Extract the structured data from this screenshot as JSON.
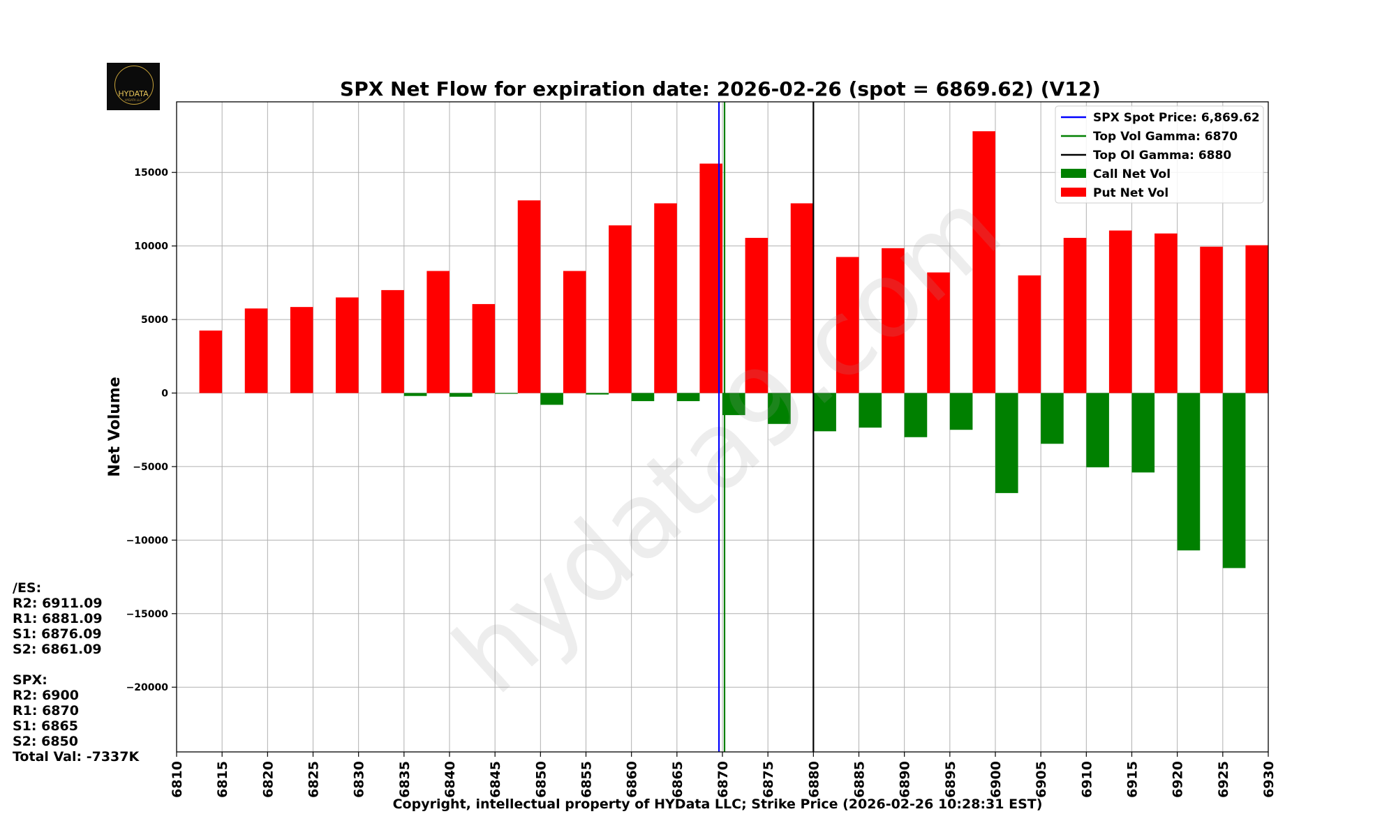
{
  "chart_data": {
    "type": "bar",
    "title": "SPX Net Flow for expiration date: 2026-02-26 (spot = 6869.62) (V12)",
    "xlabel": "Copyright, intellectual property of HYData LLC; Strike Price (2026-02-26 10:28:31 EST)",
    "ylabel": "Net Volume",
    "xlim": [
      6810,
      6930
    ],
    "ylim": [
      -24400,
      19800
    ],
    "x_ticks": [
      6810,
      6815,
      6820,
      6825,
      6830,
      6835,
      6840,
      6845,
      6850,
      6855,
      6860,
      6865,
      6870,
      6875,
      6880,
      6885,
      6890,
      6895,
      6900,
      6905,
      6910,
      6915,
      6920,
      6925,
      6930
    ],
    "y_ticks": [
      -20000,
      -15000,
      -10000,
      -5000,
      0,
      5000,
      10000,
      15000
    ],
    "y_tick_labels": [
      "−20000",
      "−15000",
      "−10000",
      "−5000",
      "0",
      "5000",
      "10000",
      "15000"
    ],
    "strikes": [
      6815,
      6820,
      6825,
      6830,
      6835,
      6840,
      6845,
      6850,
      6855,
      6860,
      6865,
      6870,
      6875,
      6880,
      6885,
      6890,
      6895,
      6900,
      6905,
      6910,
      6915,
      6920,
      6925,
      6930
    ],
    "series": [
      {
        "name": "Call Net Vol",
        "color": "#008000",
        "values": [
          0,
          0,
          0,
          0,
          -200,
          -250,
          -50,
          -800,
          -100,
          -550,
          -550,
          -1500,
          -2100,
          -2600,
          -2350,
          -3000,
          -2500,
          -6800,
          -3450,
          -5050,
          -5400,
          -10700,
          -11900,
          0
        ]
      },
      {
        "name": "Put Net Vol",
        "color": "#ff0000",
        "values": [
          4250,
          5750,
          5850,
          6500,
          7000,
          8300,
          6050,
          13100,
          8300,
          11400,
          12900,
          15600,
          10550,
          12900,
          9250,
          9850,
          8200,
          17800,
          8000,
          10550,
          11050,
          10850,
          9950,
          10050
        ]
      }
    ],
    "vlines": [
      {
        "name": "SPX Spot Price: 6,869.62",
        "x": 6869.62,
        "color": "#0000ff"
      },
      {
        "name": "Top Vol Gamma: 6870",
        "x": 6870,
        "color": "#008000"
      },
      {
        "name": "Top OI Gamma: 6880",
        "x": 6880,
        "color": "#000000"
      }
    ],
    "legend": [
      "SPX Spot Price: 6,869.62",
      "Top Vol Gamma: 6870",
      "Top OI Gamma: 6880",
      "Call Net Vol",
      "Put Net Vol"
    ],
    "legend_position": "top-right",
    "grid": true,
    "watermark": "hydata9.com"
  },
  "logo": {
    "text": "HYDATA",
    "subtext": "HYDATA LLC"
  },
  "side_panel": {
    "es_header": "/ES:",
    "es_r2": "R2: 6911.09",
    "es_r1": "R1: 6881.09",
    "es_s1": "S1: 6876.09",
    "es_s2": "S2: 6861.09",
    "spx_header": "SPX:",
    "spx_r2": "R2: 6900",
    "spx_r1": "R1: 6870",
    "spx_s1": "S1: 6865",
    "spx_s2": "S2: 6850",
    "total": "Total Val: -7337K"
  }
}
